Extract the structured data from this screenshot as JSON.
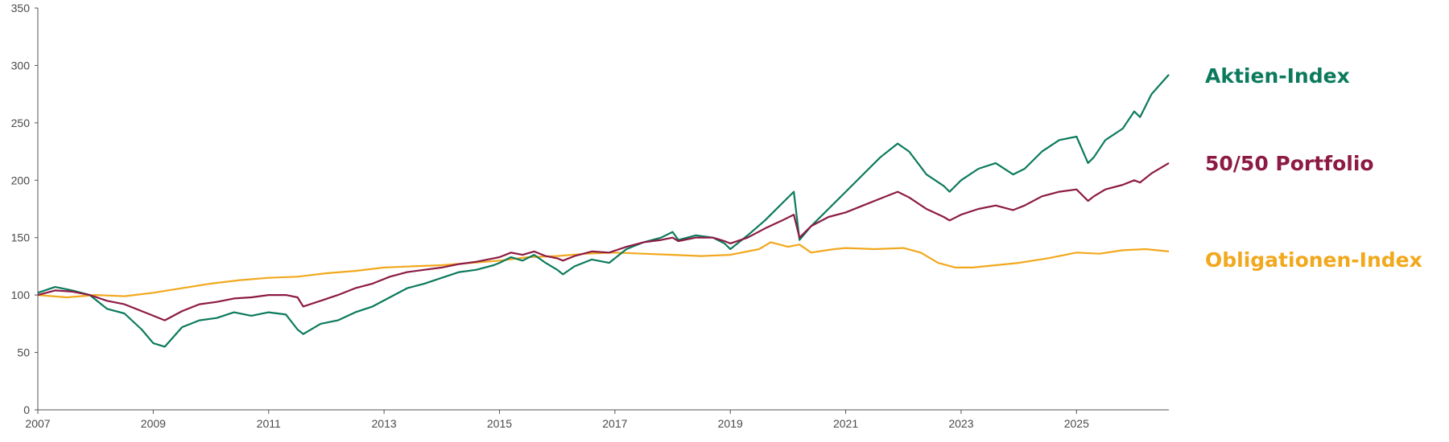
{
  "chart_data": {
    "type": "line",
    "title": "",
    "xlabel": "",
    "ylabel": "",
    "xlim": [
      2007,
      2026.6
    ],
    "ylim": [
      0,
      350
    ],
    "grid": false,
    "legend": "right",
    "x_ticks": [
      "2007",
      "2009",
      "2011",
      "2013",
      "2015",
      "2017",
      "2019",
      "2021",
      "2023",
      "2025"
    ],
    "y_ticks": [
      "0",
      "50",
      "100",
      "150",
      "200",
      "250",
      "300",
      "350"
    ],
    "series": [
      {
        "name": "Aktien-Index",
        "color": "#0b7a5c",
        "x": [
          2007.0,
          2007.3,
          2007.6,
          2007.9,
          2008.2,
          2008.5,
          2008.8,
          2009.0,
          2009.2,
          2009.5,
          2009.8,
          2010.1,
          2010.4,
          2010.7,
          2011.0,
          2011.3,
          2011.5,
          2011.6,
          2011.9,
          2012.2,
          2012.5,
          2012.8,
          2013.1,
          2013.4,
          2013.7,
          2014.0,
          2014.3,
          2014.6,
          2014.9,
          2015.0,
          2015.2,
          2015.4,
          2015.6,
          2015.8,
          2016.0,
          2016.1,
          2016.3,
          2016.6,
          2016.9,
          2017.2,
          2017.5,
          2017.8,
          2018.0,
          2018.1,
          2018.4,
          2018.7,
          2018.9,
          2019.0,
          2019.3,
          2019.6,
          2019.9,
          2020.1,
          2020.2,
          2020.4,
          2020.7,
          2021.0,
          2021.3,
          2021.6,
          2021.9,
          2022.1,
          2022.4,
          2022.7,
          2022.8,
          2023.0,
          2023.3,
          2023.6,
          2023.9,
          2024.1,
          2024.4,
          2024.7,
          2025.0,
          2025.2,
          2025.3,
          2025.5,
          2025.8,
          2026.0,
          2026.1,
          2026.3,
          2026.6
        ],
        "values": [
          102,
          107,
          104,
          100,
          88,
          84,
          70,
          58,
          55,
          72,
          78,
          80,
          85,
          82,
          85,
          83,
          70,
          66,
          75,
          78,
          85,
          90,
          98,
          106,
          110,
          115,
          120,
          122,
          126,
          128,
          133,
          130,
          135,
          128,
          122,
          118,
          125,
          131,
          128,
          140,
          146,
          150,
          155,
          148,
          152,
          150,
          145,
          140,
          152,
          165,
          180,
          190,
          148,
          160,
          175,
          190,
          205,
          220,
          232,
          225,
          205,
          195,
          190,
          200,
          210,
          215,
          205,
          210,
          225,
          235,
          238,
          215,
          220,
          235,
          245,
          260,
          255,
          275,
          292
        ]
      },
      {
        "name": "50/50 Portfolio",
        "color": "#8c1a44",
        "x": [
          2007.0,
          2007.3,
          2007.6,
          2007.9,
          2008.2,
          2008.5,
          2008.8,
          2009.0,
          2009.2,
          2009.5,
          2009.8,
          2010.1,
          2010.4,
          2010.7,
          2011.0,
          2011.3,
          2011.5,
          2011.6,
          2011.9,
          2012.2,
          2012.5,
          2012.8,
          2013.1,
          2013.4,
          2013.7,
          2014.0,
          2014.3,
          2014.6,
          2014.9,
          2015.0,
          2015.2,
          2015.4,
          2015.6,
          2015.8,
          2016.0,
          2016.1,
          2016.3,
          2016.6,
          2016.9,
          2017.2,
          2017.5,
          2017.8,
          2018.0,
          2018.1,
          2018.4,
          2018.7,
          2018.9,
          2019.0,
          2019.3,
          2019.6,
          2019.9,
          2020.1,
          2020.2,
          2020.4,
          2020.7,
          2021.0,
          2021.3,
          2021.6,
          2021.9,
          2022.1,
          2022.4,
          2022.7,
          2022.8,
          2023.0,
          2023.3,
          2023.6,
          2023.9,
          2024.1,
          2024.4,
          2024.7,
          2025.0,
          2025.2,
          2025.3,
          2025.5,
          2025.8,
          2026.0,
          2026.1,
          2026.3,
          2026.6
        ],
        "values": [
          100,
          104,
          103,
          100,
          95,
          92,
          86,
          82,
          78,
          86,
          92,
          94,
          97,
          98,
          100,
          100,
          98,
          90,
          95,
          100,
          106,
          110,
          116,
          120,
          122,
          124,
          127,
          129,
          132,
          133,
          137,
          135,
          138,
          134,
          132,
          130,
          134,
          138,
          137,
          142,
          146,
          148,
          150,
          147,
          150,
          150,
          147,
          145,
          150,
          158,
          165,
          170,
          150,
          160,
          168,
          172,
          178,
          184,
          190,
          185,
          175,
          168,
          165,
          170,
          175,
          178,
          174,
          178,
          186,
          190,
          192,
          182,
          186,
          192,
          196,
          200,
          198,
          206,
          215
        ]
      },
      {
        "name": "Obligationen-Index",
        "color": "#f2a81d",
        "x": [
          2007.0,
          2007.5,
          2008.0,
          2008.5,
          2009.0,
          2009.5,
          2010.0,
          2010.5,
          2011.0,
          2011.5,
          2012.0,
          2012.5,
          2013.0,
          2013.5,
          2014.0,
          2014.5,
          2015.0,
          2015.5,
          2016.0,
          2016.5,
          2017.0,
          2017.5,
          2018.0,
          2018.5,
          2019.0,
          2019.5,
          2019.7,
          2020.0,
          2020.2,
          2020.4,
          2020.8,
          2021.0,
          2021.5,
          2022.0,
          2022.3,
          2022.6,
          2022.9,
          2023.2,
          2023.6,
          2024.0,
          2024.5,
          2025.0,
          2025.4,
          2025.8,
          2026.2,
          2026.6
        ],
        "values": [
          100,
          98,
          100,
          99,
          102,
          106,
          110,
          113,
          115,
          116,
          119,
          121,
          124,
          125,
          126,
          128,
          130,
          133,
          134,
          136,
          137,
          136,
          135,
          134,
          135,
          140,
          146,
          142,
          144,
          137,
          140,
          141,
          140,
          141,
          137,
          128,
          124,
          124,
          126,
          128,
          132,
          137,
          136,
          139,
          140,
          138
        ]
      }
    ]
  }
}
